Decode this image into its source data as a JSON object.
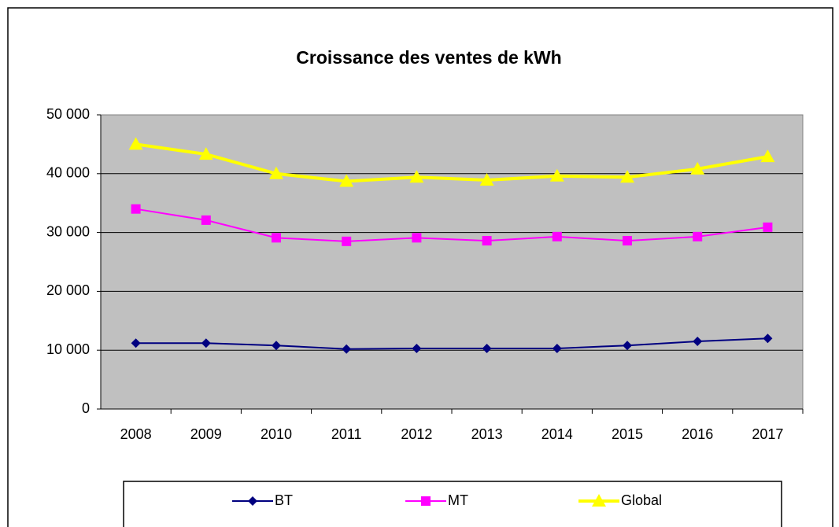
{
  "chart_data": {
    "type": "line",
    "title": "Croissance des ventes de kWh",
    "categories": [
      "2008",
      "2009",
      "2010",
      "2011",
      "2012",
      "2013",
      "2014",
      "2015",
      "2016",
      "2017"
    ],
    "series": [
      {
        "name": "BT",
        "color": "#000080",
        "marker": "diamond",
        "values": [
          11200,
          11200,
          10800,
          10200,
          10300,
          10300,
          10300,
          10800,
          11500,
          12000
        ]
      },
      {
        "name": "MT",
        "color": "#ff00ff",
        "marker": "square",
        "values": [
          34000,
          32100,
          29100,
          28500,
          29100,
          28600,
          29300,
          28600,
          29300,
          30900
        ]
      },
      {
        "name": "Global",
        "color": "#ffff00",
        "marker": "triangle",
        "values": [
          45000,
          43300,
          40000,
          38700,
          39400,
          38900,
          39600,
          39400,
          40800,
          42900
        ]
      }
    ],
    "ylim": [
      0,
      50000
    ],
    "yticks": [
      0,
      {
        "value": 10000,
        "label": "10 000"
      },
      {
        "value": 20000,
        "label": "20 000"
      },
      {
        "value": 30000,
        "label": "30 000"
      },
      {
        "value": 40000,
        "label": "40 000"
      },
      {
        "value": 50000,
        "label": "50 000"
      }
    ],
    "grid": true,
    "legend": "bottom"
  }
}
